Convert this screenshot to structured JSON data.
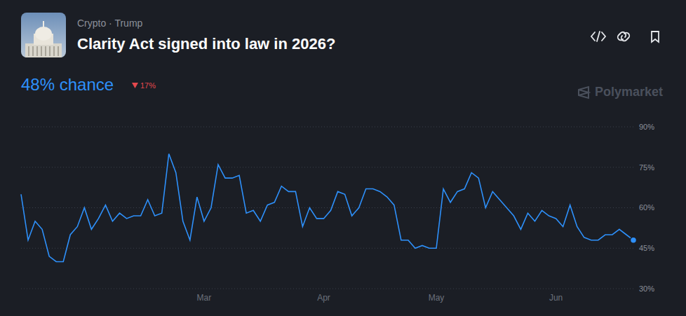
{
  "chart_data": {
    "type": "line",
    "title": "Clarity Act signed into law in 2026?",
    "subtitle": "Crypto · Trump",
    "annotations": [
      "48% chance",
      "17%",
      "Polymarket"
    ],
    "categories": [
      null,
      null,
      null,
      null,
      null,
      null,
      null,
      null,
      null,
      null,
      null,
      null,
      null,
      null,
      null,
      null,
      null,
      null,
      null,
      null,
      null,
      null,
      null,
      null,
      null,
      null,
      "Mar",
      null,
      null,
      null,
      null,
      null,
      null,
      null,
      null,
      null,
      null,
      null,
      null,
      null,
      null,
      null,
      null,
      "Apr",
      null,
      null,
      null,
      null,
      null,
      null,
      null,
      null,
      null,
      null,
      null,
      null,
      null,
      null,
      null,
      "May",
      null,
      null,
      null,
      null,
      null,
      null,
      null,
      null,
      null,
      null,
      null,
      null,
      null,
      null,
      null,
      null,
      "Jun",
      null,
      null,
      null,
      null,
      null,
      null,
      null,
      null,
      null,
      null,
      null
    ],
    "values": [
      65,
      48,
      55,
      52,
      42,
      40,
      40,
      50,
      53,
      60,
      52,
      56,
      61,
      55,
      58,
      56,
      57,
      57,
      63,
      57,
      58,
      80,
      73,
      55,
      48,
      64,
      55,
      60,
      76,
      71,
      71,
      72,
      58,
      59,
      55,
      61,
      62,
      68,
      66,
      66,
      53,
      60,
      56,
      56,
      59,
      66,
      65,
      57,
      60,
      67,
      67,
      66,
      64,
      61,
      48,
      48,
      45,
      46,
      45,
      45,
      67,
      62,
      66,
      67,
      73,
      71,
      60,
      66,
      63,
      60,
      57,
      52,
      58,
      55,
      59,
      57,
      56,
      53,
      61,
      53,
      49,
      48,
      48,
      50,
      50,
      52,
      50,
      48
    ],
    "color": "#2e90fa",
    "ylim": [
      30,
      90
    ],
    "yticks": [
      {
        "value": 30,
        "label": "30%"
      },
      {
        "value": 45,
        "label": "45%"
      },
      {
        "value": 60,
        "label": "60%"
      },
      {
        "value": 75,
        "label": "75%"
      },
      {
        "value": 90,
        "label": "90%"
      }
    ],
    "grid": true
  }
}
